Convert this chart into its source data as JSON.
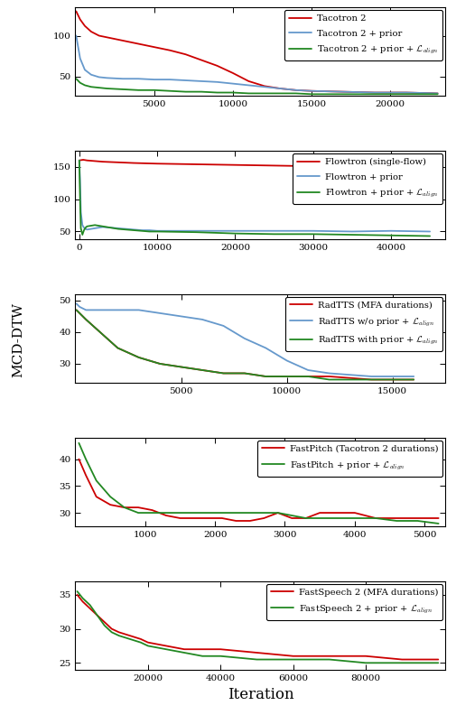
{
  "subplot1": {
    "legend": [
      "Tacotron 2",
      "Tacotron 2 + prior",
      "Tacotron 2 + prior + $\\mathcal{L}_{align}$"
    ],
    "colors": [
      "#cc0000",
      "#6699cc",
      "#228822"
    ],
    "xlim": [
      0,
      23500
    ],
    "ylim": [
      26,
      135
    ],
    "xticks": [
      5000,
      10000,
      15000,
      20000
    ],
    "yticks": [
      50,
      100
    ],
    "series": [
      {
        "x": [
          50,
          300,
          600,
          1000,
          1500,
          2000,
          3000,
          4000,
          5000,
          6000,
          7000,
          8000,
          9000,
          10000,
          11000,
          12000,
          13000,
          14000,
          15000,
          17000,
          19000,
          21000,
          23000
        ],
        "y": [
          130,
          120,
          112,
          105,
          100,
          98,
          94,
          90,
          86,
          82,
          77,
          70,
          63,
          54,
          44,
          38,
          35,
          33,
          32,
          31,
          30,
          30,
          29
        ]
      },
      {
        "x": [
          50,
          300,
          600,
          1000,
          1500,
          2000,
          3000,
          4000,
          5000,
          6000,
          7000,
          8000,
          9000,
          10000,
          11000,
          12000,
          13000,
          14000,
          15000,
          17000,
          19000,
          21000,
          23000
        ],
        "y": [
          100,
          72,
          58,
          52,
          49,
          48,
          47,
          47,
          46,
          46,
          45,
          44,
          43,
          41,
          39,
          37,
          35,
          33,
          32,
          31,
          30,
          30,
          29
        ]
      },
      {
        "x": [
          50,
          300,
          600,
          1000,
          1500,
          2000,
          3000,
          4000,
          5000,
          6000,
          7000,
          8000,
          9000,
          10000,
          11000,
          12000,
          13000,
          14000,
          15000,
          17000,
          19000,
          21000,
          23000
        ],
        "y": [
          47,
          42,
          39,
          37,
          36,
          35,
          34,
          33,
          33,
          32,
          31,
          31,
          30,
          30,
          29,
          29,
          29,
          29,
          28,
          28,
          28,
          28,
          28
        ]
      }
    ]
  },
  "subplot2": {
    "legend": [
      "Flowtron (single-flow)",
      "Flowtron + prior",
      "Flowtron + prior + $\\mathcal{L}_{align}$"
    ],
    "colors": [
      "#cc0000",
      "#6699cc",
      "#228822"
    ],
    "xlim": [
      -500,
      47000
    ],
    "ylim": [
      38,
      175
    ],
    "xticks": [
      0,
      10000,
      20000,
      30000,
      40000
    ],
    "yticks": [
      50,
      100,
      150
    ],
    "series": [
      {
        "x": [
          0,
          500,
          1000,
          2000,
          3000,
          5000,
          7000,
          10000,
          15000,
          20000,
          25000,
          30000,
          35000,
          40000,
          45000
        ],
        "y": [
          160,
          161,
          160,
          159,
          158,
          157,
          156,
          155,
          154,
          153,
          152,
          151,
          151,
          150,
          150
        ]
      },
      {
        "x": [
          0,
          100,
          200,
          400,
          600,
          800,
          1000,
          1500,
          2000,
          3000,
          4000,
          5000,
          6000,
          7000,
          8000,
          9000,
          10000,
          15000,
          20000,
          25000,
          30000,
          35000,
          40000,
          45000
        ],
        "y": [
          160,
          130,
          80,
          60,
          56,
          54,
          53,
          54,
          55,
          57,
          56,
          55,
          54,
          53,
          52,
          52,
          51,
          51,
          51,
          51,
          51,
          50,
          51,
          50
        ]
      },
      {
        "x": [
          0,
          100,
          200,
          400,
          600,
          800,
          1000,
          1500,
          2000,
          3000,
          4000,
          5000,
          6000,
          7000,
          8000,
          9000,
          10000,
          15000,
          20000,
          25000,
          30000,
          35000,
          40000,
          45000
        ],
        "y": [
          160,
          100,
          55,
          45,
          52,
          56,
          58,
          59,
          60,
          58,
          56,
          54,
          53,
          52,
          51,
          50,
          50,
          49,
          47,
          46,
          46,
          45,
          44,
          43
        ]
      }
    ]
  },
  "subplot3": {
    "legend": [
      "RadTTS (MFA durations)",
      "RadTTS w/o prior + $\\mathcal{L}_{align}$",
      "RadTTS with prior + $\\mathcal{L}_{align}$"
    ],
    "colors": [
      "#cc0000",
      "#6699cc",
      "#228822"
    ],
    "xlim": [
      0,
      17500
    ],
    "ylim": [
      24,
      52
    ],
    "xticks": [
      5000,
      10000,
      15000
    ],
    "yticks": [
      30,
      40,
      50
    ],
    "series": [
      {
        "x": [
          50,
          200,
          500,
          1000,
          1500,
          2000,
          3000,
          4000,
          5000,
          6000,
          7000,
          8000,
          9000,
          10000,
          11000,
          12000,
          14000,
          16000
        ],
        "y": [
          47,
          46,
          44,
          41,
          38,
          35,
          32,
          30,
          29,
          28,
          27,
          27,
          26,
          26,
          26,
          26,
          25,
          25
        ]
      },
      {
        "x": [
          50,
          200,
          500,
          1000,
          1500,
          2000,
          3000,
          4000,
          5000,
          6000,
          7000,
          8000,
          9000,
          10000,
          11000,
          12000,
          14000,
          16000
        ],
        "y": [
          49,
          48,
          47,
          47,
          47,
          47,
          47,
          46,
          45,
          44,
          42,
          38,
          35,
          31,
          28,
          27,
          26,
          26
        ]
      },
      {
        "x": [
          50,
          200,
          500,
          1000,
          1500,
          2000,
          3000,
          4000,
          5000,
          6000,
          7000,
          8000,
          9000,
          10000,
          11000,
          12000,
          14000,
          16000
        ],
        "y": [
          47,
          46,
          44,
          41,
          38,
          35,
          32,
          30,
          29,
          28,
          27,
          27,
          26,
          26,
          26,
          25,
          25,
          25
        ]
      }
    ]
  },
  "subplot4": {
    "legend": [
      "FastPitch (Tacotron 2 durations)",
      "FastPitch + prior + $\\mathcal{L}_{align}$"
    ],
    "colors": [
      "#cc0000",
      "#228822"
    ],
    "xlim": [
      0,
      5300
    ],
    "ylim": [
      27.5,
      44
    ],
    "xticks": [
      1000,
      2000,
      3000,
      4000,
      5000
    ],
    "yticks": [
      30,
      35,
      40
    ],
    "series": [
      {
        "x": [
          50,
          150,
          300,
          500,
          700,
          900,
          1100,
          1300,
          1500,
          1700,
          1900,
          2100,
          2300,
          2500,
          2700,
          2900,
          3100,
          3300,
          3500,
          3700,
          4000,
          4300,
          4600,
          4900,
          5200
        ],
        "y": [
          40,
          37,
          33,
          31.5,
          31,
          31,
          30.5,
          29.5,
          29,
          29,
          29,
          29,
          28.5,
          28.5,
          29,
          30,
          29,
          29,
          30,
          30,
          30,
          29,
          29,
          29,
          29
        ]
      },
      {
        "x": [
          50,
          150,
          300,
          500,
          700,
          900,
          1100,
          1300,
          1500,
          1700,
          1900,
          2100,
          2300,
          2500,
          2700,
          2900,
          3100,
          3300,
          3500,
          3700,
          4000,
          4300,
          4600,
          4900,
          5200
        ],
        "y": [
          43,
          40,
          36,
          33,
          31,
          30,
          30,
          30,
          30,
          30,
          30,
          30,
          30,
          30,
          30,
          30,
          29.5,
          29,
          29,
          29,
          29,
          29,
          28.5,
          28.5,
          28
        ]
      }
    ]
  },
  "subplot5": {
    "legend": [
      "FastSpeech 2 (MFA durations)",
      "FastSpeech 2 + prior + $\\mathcal{L}_{align}$"
    ],
    "colors": [
      "#cc0000",
      "#228822"
    ],
    "xlim": [
      0,
      102000
    ],
    "ylim": [
      24,
      37
    ],
    "xticks": [
      20000,
      40000,
      60000,
      80000
    ],
    "yticks": [
      25,
      30,
      35
    ],
    "series": [
      {
        "x": [
          500,
          2000,
          4000,
          6000,
          8000,
          10000,
          12000,
          15000,
          18000,
          20000,
          25000,
          30000,
          35000,
          40000,
          50000,
          60000,
          70000,
          80000,
          90000,
          100000
        ],
        "y": [
          35,
          34,
          33,
          32,
          31,
          30,
          29.5,
          29,
          28.5,
          28,
          27.5,
          27,
          27,
          27,
          26.5,
          26,
          26,
          26,
          25.5,
          25.5
        ]
      },
      {
        "x": [
          500,
          2000,
          4000,
          6000,
          8000,
          10000,
          12000,
          15000,
          18000,
          20000,
          25000,
          30000,
          35000,
          40000,
          50000,
          60000,
          70000,
          80000,
          90000,
          100000
        ],
        "y": [
          35.5,
          34.5,
          33.5,
          32,
          30.5,
          29.5,
          29,
          28.5,
          28,
          27.5,
          27,
          26.5,
          26,
          26,
          25.5,
          25.5,
          25.5,
          25,
          25,
          25
        ]
      }
    ]
  },
  "ylabel": "MCD-DTW",
  "xlabel": "Iteration",
  "linewidth": 1.3
}
